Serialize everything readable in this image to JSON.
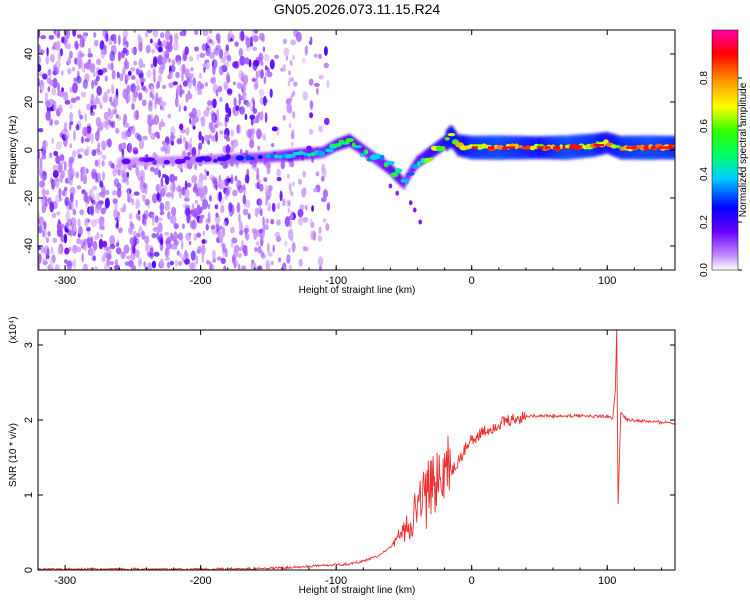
{
  "title": "GN05.2026.073.11.15.R24",
  "chart_data": [
    {
      "type": "heatmap",
      "title": "GN05.2026.073.11.15.R24",
      "xlabel": "Height of straight line (km)",
      "ylabel": "Frequency (Hz)",
      "xlim": [
        -320,
        150
      ],
      "ylim": [
        -50,
        50
      ],
      "xticks": [
        -300,
        -200,
        -100,
        0,
        100
      ],
      "yticks": [
        -40,
        -20,
        0,
        20,
        40
      ],
      "colorbar": {
        "label": "Normalized spectral amplitude",
        "range": [
          0,
          1
        ],
        "ticks": [
          "0.0",
          "0.2",
          "0.4",
          "0.6",
          "0.8"
        ],
        "colors": [
          "#ffffff",
          "#c58cff",
          "#6a00ff",
          "#0000ff",
          "#00ccff",
          "#00ff66",
          "#33ff00",
          "#ffff00",
          "#ff8800",
          "#ff0000",
          "#ff00aa"
        ]
      },
      "ridge": {
        "description": "scattered noise below -150 km; a coherent signal line near 0 Hz from -250 to 150 km, dipping to about -15 Hz near -50 km, brightest (red) above 0 km",
        "x": [
          -260,
          -200,
          -150,
          -130,
          -110,
          -100,
          -90,
          -80,
          -70,
          -60,
          -55,
          -50,
          -45,
          -40,
          -30,
          -20,
          -15,
          -10,
          0,
          20,
          50,
          70,
          90,
          100,
          110,
          130,
          150
        ],
        "y": [
          -5,
          -4,
          -3,
          -2,
          -1,
          2,
          4,
          0,
          -4,
          -8,
          -11,
          -14,
          -9,
          -5,
          -1,
          3,
          6,
          2,
          1,
          1,
          1,
          1,
          2,
          3,
          1,
          1,
          1
        ],
        "amplitude": [
          0.15,
          0.2,
          0.35,
          0.45,
          0.4,
          0.5,
          0.55,
          0.45,
          0.4,
          0.5,
          0.55,
          0.4,
          0.4,
          0.5,
          0.6,
          0.65,
          0.75,
          0.7,
          0.8,
          0.85,
          0.75,
          0.85,
          0.8,
          0.7,
          0.8,
          0.85,
          0.8
        ]
      }
    },
    {
      "type": "line",
      "xlabel": "Height of straight line (km)",
      "ylabel": "SNR (10 * v/v)",
      "yscale_label": "(x10⁴)",
      "xlim": [
        -320,
        150
      ],
      "ylim": [
        0,
        3.2
      ],
      "xticks": [
        -300,
        -200,
        -100,
        0,
        100
      ],
      "yticks": [
        0,
        1,
        2,
        3
      ],
      "series": [
        {
          "name": "SNR",
          "color": "#ee3030",
          "x": [
            -320,
            -250,
            -200,
            -150,
            -130,
            -110,
            -100,
            -90,
            -80,
            -70,
            -60,
            -50,
            -40,
            -35,
            -30,
            -25,
            -20,
            -15,
            -10,
            -5,
            0,
            10,
            20,
            30,
            40,
            50,
            60,
            70,
            80,
            90,
            100,
            104,
            106,
            107,
            108,
            110,
            115,
            130,
            150
          ],
          "y": [
            0.01,
            0.01,
            0.01,
            0.02,
            0.04,
            0.06,
            0.07,
            0.08,
            0.12,
            0.18,
            0.3,
            0.45,
            0.7,
            0.8,
            0.85,
            1.1,
            1.1,
            1.3,
            1.45,
            1.6,
            1.75,
            1.85,
            1.95,
            2.0,
            2.05,
            2.06,
            2.05,
            2.05,
            2.06,
            2.05,
            2.05,
            2.02,
            2.4,
            3.2,
            0.88,
            2.1,
            2.0,
            1.98,
            1.96
          ]
        }
      ]
    }
  ]
}
